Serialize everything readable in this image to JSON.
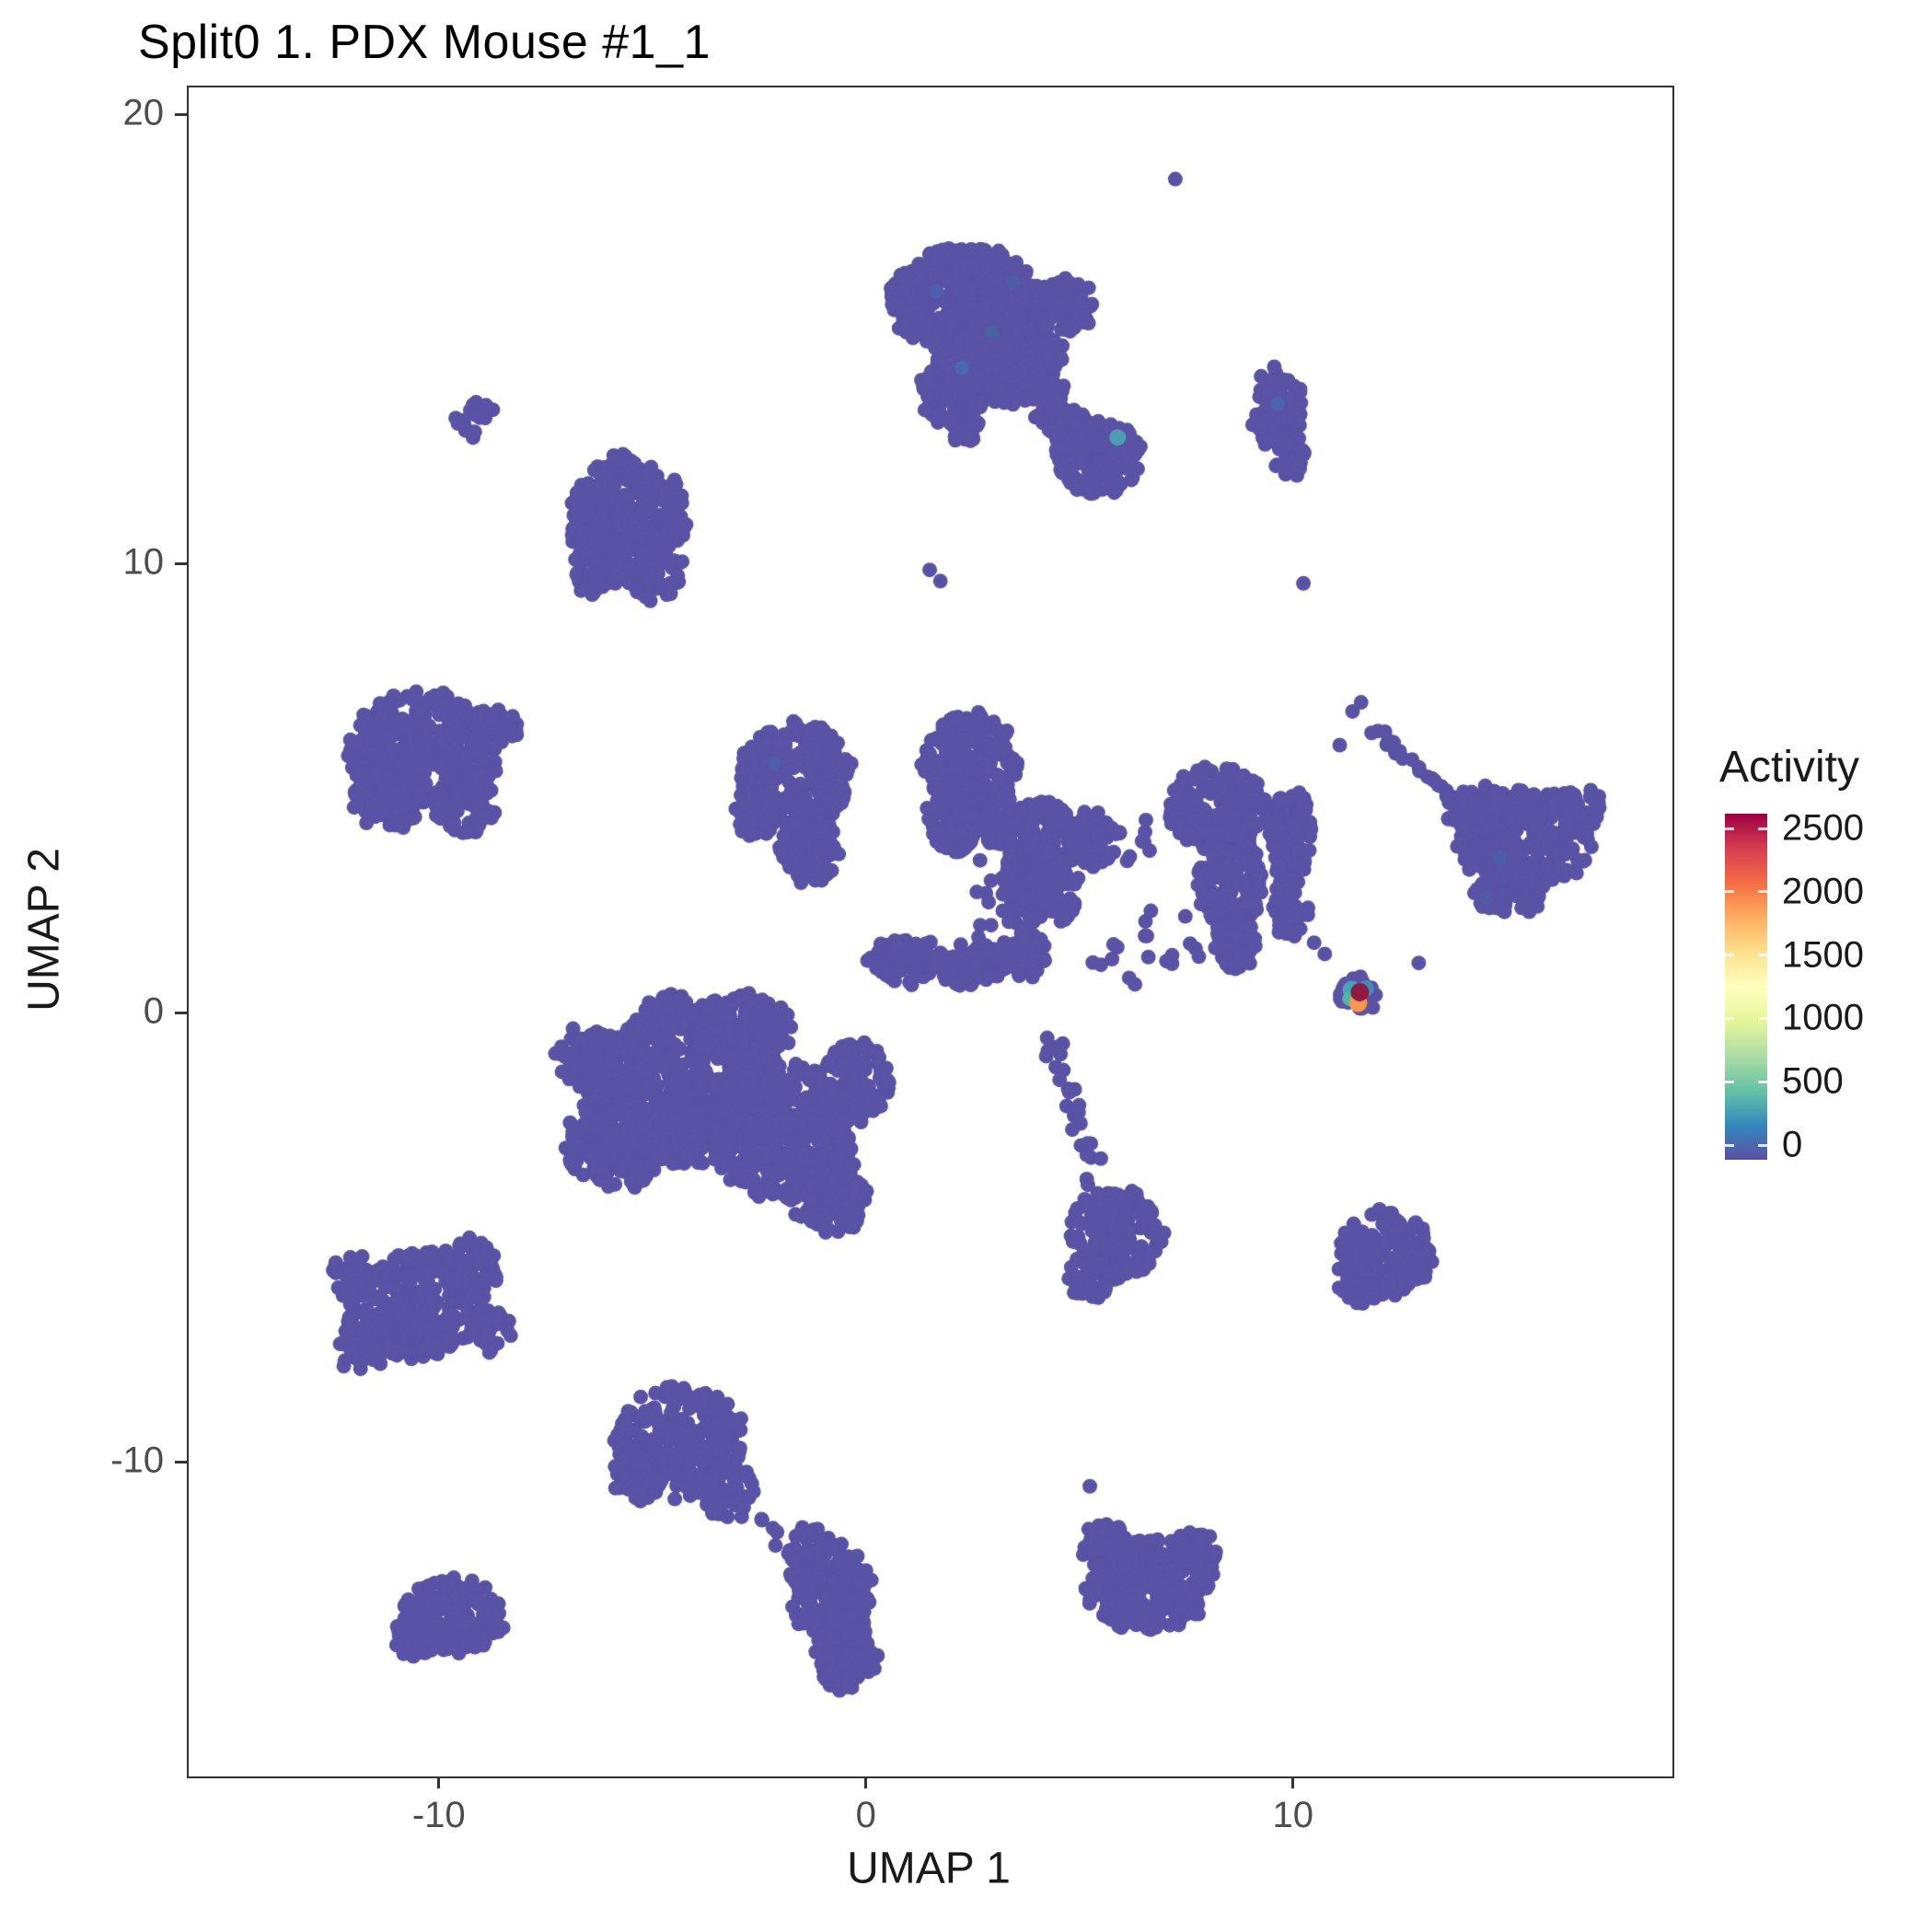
{
  "chart_data": {
    "type": "scatter",
    "title": "Split0 1. PDX Mouse #1_1",
    "xlabel": "UMAP 1",
    "ylabel": "UMAP 2",
    "x_ticks": [
      {
        "label": "-10",
        "value": -10
      },
      {
        "label": "0",
        "value": 0
      },
      {
        "label": "10",
        "value": 10
      }
    ],
    "y_ticks": [
      {
        "label": "-10",
        "value": -10
      },
      {
        "label": "0",
        "value": 0
      },
      {
        "label": "10",
        "value": 10
      },
      {
        "label": "20",
        "value": 20
      }
    ],
    "x_domain": [
      -15.9,
      18.84
    ],
    "y_domain": [
      -16.96,
      20.64
    ],
    "legend": {
      "title": "Activity",
      "max": 2500,
      "ticks": [
        {
          "label": "0",
          "value": 0
        },
        {
          "label": "500",
          "value": 500
        },
        {
          "label": "1000",
          "value": 1000
        },
        {
          "label": "1500",
          "value": 1500
        },
        {
          "label": "2000",
          "value": 2000
        },
        {
          "label": "2500",
          "value": 2500
        }
      ],
      "gradient": [
        "#5e4fa2",
        "#3288bd",
        "#66c2a5",
        "#abdda4",
        "#e6f598",
        "#ffffbf",
        "#fee08b",
        "#fdae61",
        "#f46d43",
        "#d53e4f",
        "#9e0142"
      ]
    },
    "point_color": "#5a52a5",
    "point_radius_px": 8,
    "clusters": [
      {
        "name": "top-large",
        "lobes": [
          {
            "x": 2.3,
            "y": 15.9,
            "rx": 1.8,
            "ry": 1.2,
            "n": 420
          },
          {
            "x": 3.3,
            "y": 14.6,
            "rx": 1.3,
            "ry": 1.0,
            "n": 260
          },
          {
            "x": 2.0,
            "y": 13.9,
            "rx": 0.8,
            "ry": 0.8,
            "n": 120
          },
          {
            "x": 2.3,
            "y": 13.1,
            "rx": 0.4,
            "ry": 0.4,
            "n": 30
          },
          {
            "x": 4.3,
            "y": 13.6,
            "rx": 0.5,
            "ry": 0.5,
            "n": 40
          },
          {
            "x": 4.6,
            "y": 15.8,
            "rx": 0.7,
            "ry": 0.6,
            "n": 70
          }
        ]
      },
      {
        "name": "top-right-blob",
        "lobes": [
          {
            "x": 5.4,
            "y": 12.4,
            "rx": 1.0,
            "ry": 0.85,
            "n": 170
          },
          {
            "x": 4.7,
            "y": 13.1,
            "rx": 0.5,
            "ry": 0.5,
            "n": 50
          }
        ]
      },
      {
        "name": "right-strip",
        "lobes": [
          {
            "x": 9.6,
            "y": 13.4,
            "rx": 0.55,
            "ry": 1.0,
            "n": 95
          },
          {
            "x": 9.9,
            "y": 12.4,
            "rx": 0.35,
            "ry": 0.5,
            "n": 30
          }
        ]
      },
      {
        "name": "tiny-left-pair",
        "lobes": [
          {
            "x": -9.0,
            "y": 13.5,
            "rx": 0.27,
            "ry": 0.3,
            "n": 9
          },
          {
            "x": -9.4,
            "y": 13.05,
            "rx": 0.27,
            "ry": 0.3,
            "n": 9
          }
        ]
      },
      {
        "name": "upper-left",
        "lobes": [
          {
            "x": -5.6,
            "y": 11.0,
            "rx": 1.35,
            "ry": 1.5,
            "n": 290
          },
          {
            "x": -6.3,
            "y": 10.0,
            "rx": 0.7,
            "ry": 0.7,
            "n": 80
          },
          {
            "x": -4.9,
            "y": 9.8,
            "rx": 0.6,
            "ry": 0.6,
            "n": 60
          }
        ]
      },
      {
        "name": "left",
        "lobes": [
          {
            "x": -10.4,
            "y": 5.9,
            "rx": 1.8,
            "ry": 1.3,
            "n": 330
          },
          {
            "x": -11.2,
            "y": 4.9,
            "rx": 0.9,
            "ry": 0.8,
            "n": 90
          },
          {
            "x": -9.4,
            "y": 4.7,
            "rx": 0.7,
            "ry": 0.7,
            "n": 70
          },
          {
            "x": -8.7,
            "y": 6.4,
            "rx": 0.5,
            "ry": 0.5,
            "n": 40
          }
        ]
      },
      {
        "name": "mid-left",
        "lobes": [
          {
            "x": -1.7,
            "y": 5.3,
            "rx": 1.3,
            "ry": 1.2,
            "n": 260
          },
          {
            "x": -1.4,
            "y": 3.7,
            "rx": 0.7,
            "ry": 0.8,
            "n": 90
          },
          {
            "x": -2.6,
            "y": 4.5,
            "rx": 0.55,
            "ry": 0.6,
            "n": 50
          }
        ]
      },
      {
        "name": "central-complex",
        "lobes": [
          {
            "x": 2.4,
            "y": 5.6,
            "rx": 1.1,
            "ry": 1.1,
            "n": 200
          },
          {
            "x": 2.0,
            "y": 4.4,
            "rx": 0.6,
            "ry": 0.8,
            "n": 80
          },
          {
            "x": 3.0,
            "y": 4.4,
            "rx": 0.5,
            "ry": 0.7,
            "n": 60
          },
          {
            "x": 4.0,
            "y": 3.9,
            "rx": 0.9,
            "ry": 0.9,
            "n": 140
          },
          {
            "x": 3.6,
            "y": 2.7,
            "rx": 0.5,
            "ry": 0.8,
            "n": 70
          },
          {
            "x": 4.5,
            "y": 2.8,
            "rx": 0.45,
            "ry": 0.7,
            "n": 60
          },
          {
            "x": 5.3,
            "y": 3.9,
            "rx": 0.6,
            "ry": 0.6,
            "n": 70
          },
          {
            "x": 8.2,
            "y": 4.6,
            "rx": 1.2,
            "ry": 0.9,
            "n": 200
          },
          {
            "x": 8.5,
            "y": 3.0,
            "rx": 0.75,
            "ry": 1.1,
            "n": 150
          },
          {
            "x": 8.6,
            "y": 1.6,
            "rx": 0.5,
            "ry": 0.6,
            "n": 60
          },
          {
            "x": 9.9,
            "y": 4.0,
            "rx": 0.5,
            "ry": 1.1,
            "n": 110
          },
          {
            "x": 9.9,
            "y": 2.4,
            "rx": 0.4,
            "ry": 0.7,
            "n": 50
          },
          {
            "x": 0.9,
            "y": 1.2,
            "rx": 0.9,
            "ry": 0.5,
            "n": 80
          },
          {
            "x": 2.4,
            "y": 1.1,
            "rx": 0.8,
            "ry": 0.45,
            "n": 70
          },
          {
            "x": 3.6,
            "y": 1.3,
            "rx": 0.6,
            "ry": 0.5,
            "n": 55
          }
        ]
      },
      {
        "name": "right",
        "lobes": [
          {
            "x": 15.4,
            "y": 3.9,
            "rx": 1.6,
            "ry": 1.1,
            "n": 260
          },
          {
            "x": 14.2,
            "y": 4.6,
            "rx": 0.7,
            "ry": 0.6,
            "n": 60
          },
          {
            "x": 16.6,
            "y": 4.6,
            "rx": 0.6,
            "ry": 0.5,
            "n": 45
          },
          {
            "x": 15.0,
            "y": 2.8,
            "rx": 0.8,
            "ry": 0.6,
            "n": 70
          }
        ]
      },
      {
        "name": "activity-hotspot-base",
        "lobes": [
          {
            "x": 11.5,
            "y": 0.45,
            "rx": 0.42,
            "ry": 0.4,
            "n": 40
          }
        ]
      },
      {
        "name": "big-bottom-left",
        "lobes": [
          {
            "x": -4.4,
            "y": -1.6,
            "rx": 2.4,
            "ry": 1.7,
            "n": 700
          },
          {
            "x": -2.0,
            "y": -2.6,
            "rx": 1.7,
            "ry": 1.5,
            "n": 420
          },
          {
            "x": -5.9,
            "y": -2.9,
            "rx": 1.2,
            "ry": 1.0,
            "n": 180
          },
          {
            "x": -3.0,
            "y": -0.3,
            "rx": 1.2,
            "ry": 0.8,
            "n": 160
          },
          {
            "x": -0.9,
            "y": -4.0,
            "rx": 0.9,
            "ry": 0.9,
            "n": 120
          },
          {
            "x": -6.6,
            "y": -1.0,
            "rx": 0.7,
            "ry": 0.7,
            "n": 70
          },
          {
            "x": -4.7,
            "y": 0.1,
            "rx": 0.6,
            "ry": 0.4,
            "n": 50
          },
          {
            "x": -0.3,
            "y": -1.5,
            "rx": 0.8,
            "ry": 0.9,
            "n": 110
          }
        ]
      },
      {
        "name": "below-center-branch",
        "lobes": [
          {
            "x": 5.8,
            "y": -4.9,
            "rx": 1.1,
            "ry": 1.0,
            "n": 170
          },
          {
            "x": 5.2,
            "y": -5.9,
            "rx": 0.5,
            "ry": 0.5,
            "n": 40
          }
        ]
      },
      {
        "name": "right-low",
        "lobes": [
          {
            "x": 12.1,
            "y": -5.3,
            "rx": 1.1,
            "ry": 0.95,
            "n": 170
          },
          {
            "x": 11.5,
            "y": -6.0,
            "rx": 0.5,
            "ry": 0.45,
            "n": 35
          }
        ]
      },
      {
        "name": "left-spiky",
        "lobes": [
          {
            "x": -10.6,
            "y": -6.5,
            "rx": 1.6,
            "ry": 1.2,
            "n": 260
          },
          {
            "x": -9.3,
            "y": -5.6,
            "rx": 0.7,
            "ry": 0.6,
            "n": 60
          },
          {
            "x": -11.7,
            "y": -7.4,
            "rx": 0.7,
            "ry": 0.6,
            "n": 55
          },
          {
            "x": -8.8,
            "y": -7.0,
            "rx": 0.5,
            "ry": 0.5,
            "n": 35
          },
          {
            "x": -12.1,
            "y": -5.8,
            "rx": 0.5,
            "ry": 0.45,
            "n": 30
          }
        ]
      },
      {
        "name": "bottom-1",
        "lobes": [
          {
            "x": -4.4,
            "y": -9.5,
            "rx": 1.5,
            "ry": 1.25,
            "n": 280
          },
          {
            "x": -3.3,
            "y": -10.6,
            "rx": 0.7,
            "ry": 0.6,
            "n": 60
          },
          {
            "x": -5.4,
            "y": -10.3,
            "rx": 0.6,
            "ry": 0.5,
            "n": 45
          }
        ]
      },
      {
        "name": "bottom-center",
        "lobes": [
          {
            "x": -0.9,
            "y": -12.8,
            "rx": 1.0,
            "ry": 1.1,
            "n": 180
          },
          {
            "x": -0.5,
            "y": -14.2,
            "rx": 0.7,
            "ry": 0.9,
            "n": 110
          },
          {
            "x": -1.4,
            "y": -11.9,
            "rx": 0.5,
            "ry": 0.5,
            "n": 40
          }
        ]
      },
      {
        "name": "bottom-left-small",
        "lobes": [
          {
            "x": -9.7,
            "y": -13.4,
            "rx": 1.2,
            "ry": 0.85,
            "n": 170
          },
          {
            "x": -10.6,
            "y": -13.9,
            "rx": 0.5,
            "ry": 0.4,
            "n": 30
          }
        ]
      },
      {
        "name": "bottom-right",
        "lobes": [
          {
            "x": 6.6,
            "y": -12.7,
            "rx": 1.5,
            "ry": 1.05,
            "n": 260
          },
          {
            "x": 5.6,
            "y": -11.9,
            "rx": 0.6,
            "ry": 0.55,
            "n": 50
          },
          {
            "x": 7.7,
            "y": -11.9,
            "rx": 0.5,
            "ry": 0.45,
            "n": 35
          }
        ]
      }
    ],
    "chains": [
      {
        "from": [
          13.6,
          4.9
        ],
        "to": [
          11.8,
          6.4
        ],
        "n": 20,
        "jitter": 0.13
      },
      {
        "from": [
          4.25,
          -0.35
        ],
        "to": [
          5.35,
          -3.7
        ],
        "n": 26,
        "jitter": 0.24
      },
      {
        "from": [
          2.7,
          3.4
        ],
        "to": [
          2.7,
          1.6
        ],
        "n": 8,
        "jitter": 0.2
      },
      {
        "from": [
          5.6,
          3.6
        ],
        "to": [
          7.0,
          4.2
        ],
        "n": 10,
        "jitter": 0.35
      },
      {
        "from": [
          6.2,
          0.8
        ],
        "to": [
          7.8,
          1.6
        ],
        "n": 9,
        "jitter": 0.3
      },
      {
        "from": [
          5.2,
          1.2
        ],
        "to": [
          7.2,
          2.4
        ],
        "n": 10,
        "jitter": 0.35
      },
      {
        "from": [
          -2.55,
          -11.15
        ],
        "to": [
          -1.95,
          -11.9
        ],
        "n": 6,
        "jitter": 0.12
      }
    ],
    "singletons": [
      [
        7.2,
        18.6
      ],
      [
        10.2,
        9.6
      ],
      [
        1.45,
        9.9
      ],
      [
        1.7,
        9.65
      ],
      [
        5.2,
        -10.5
      ],
      [
        10.45,
        1.6
      ],
      [
        10.7,
        1.35
      ],
      [
        12.9,
        1.15
      ],
      [
        11.35,
        6.75
      ],
      [
        11.55,
        6.95
      ],
      [
        11.05,
        6.0
      ]
    ],
    "special_points": [
      {
        "x": 1.6,
        "y": 16.1,
        "color": "#4b5fae",
        "r": 8
      },
      {
        "x": 2.9,
        "y": 15.2,
        "color": "#47629f",
        "r": 8
      },
      {
        "x": 2.2,
        "y": 14.4,
        "color": "#4a67b0",
        "r": 8
      },
      {
        "x": 3.4,
        "y": 16.3,
        "color": "#4f5ca8",
        "r": 8
      },
      {
        "x": 5.85,
        "y": 12.85,
        "color": "#4e9bb5",
        "r": 9
      },
      {
        "x": 9.6,
        "y": 13.6,
        "color": "#4a64ad",
        "r": 8
      },
      {
        "x": -2.2,
        "y": 5.6,
        "color": "#4c5da9",
        "r": 8
      },
      {
        "x": 14.8,
        "y": 3.5,
        "color": "#4c5da9",
        "r": 8
      },
      {
        "x": 14.5,
        "y": 2.6,
        "color": "#505ba6",
        "r": 8
      },
      {
        "x": 11.33,
        "y": 0.55,
        "color": "#45a5b8",
        "r": 10
      },
      {
        "x": 11.66,
        "y": 0.58,
        "color": "#3f8fba",
        "r": 9
      },
      {
        "x": 11.28,
        "y": 0.35,
        "color": "#52b5a2",
        "r": 8
      },
      {
        "x": 11.48,
        "y": 0.26,
        "color": "#f2994f",
        "r": 10
      },
      {
        "x": 11.52,
        "y": 0.5,
        "color": "#8e1a3f",
        "r": 10
      }
    ]
  }
}
